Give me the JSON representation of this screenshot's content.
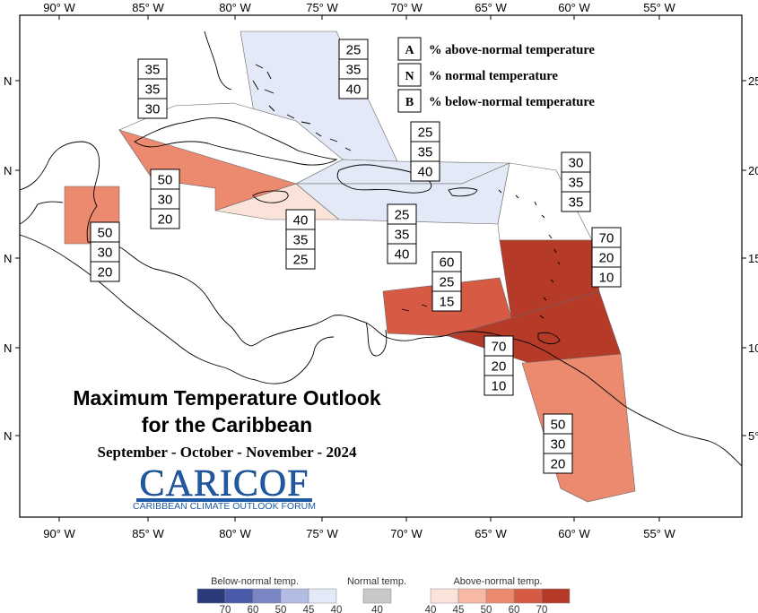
{
  "map": {
    "lon_ticks": [
      "90° W",
      "85° W",
      "80° W",
      "75° W",
      "70° W",
      "65° W",
      "60° W",
      "55° W"
    ],
    "lat_ticks_left": [
      "N",
      "N",
      "N",
      "N",
      "N"
    ],
    "lat_ticks_right": [
      "25",
      "20",
      "15",
      "10",
      "5°"
    ],
    "frame_lon_range": [
      -92,
      -51
    ],
    "frame_lat_range": [
      0.5,
      28
    ]
  },
  "legend": {
    "items": [
      {
        "letter": "A",
        "text": "% above-normal temperature"
      },
      {
        "letter": "N",
        "text": "% normal temperature"
      },
      {
        "letter": "B",
        "text": "% below-normal temperature"
      }
    ]
  },
  "title": {
    "line1": "Maximum Temperature Outlook",
    "line2": "for the Caribbean",
    "line3": "September - October - November - 2024"
  },
  "logo": {
    "name": "CARICOF",
    "caption": "CARIBBEAN CLIMATE OUTLOOK FORUM"
  },
  "colorbar": {
    "below": {
      "label": "Below-normal temp.",
      "ticks": [
        "70",
        "60",
        "50",
        "45",
        "40"
      ],
      "colors": [
        "#2b3a7a",
        "#4a5aa8",
        "#7b86c5",
        "#b3bde3",
        "#e4e9f7"
      ]
    },
    "normal": {
      "label": "Normal temp.",
      "ticks": [
        "40"
      ],
      "colors": [
        "#c8c8c8"
      ]
    },
    "above": {
      "label": "Above-normal temp.",
      "ticks": [
        "40",
        "45",
        "50",
        "60",
        "70"
      ],
      "colors": [
        "#fbe3da",
        "#f7b9a4",
        "#ec8a70",
        "#d65a44",
        "#b53a28"
      ]
    }
  },
  "regions": [
    {
      "id": "bahamas",
      "A": "25",
      "N": "35",
      "B": "40",
      "category": "below",
      "level": "40",
      "color": "#e4e9f7"
    },
    {
      "id": "cuba",
      "A": "35",
      "N": "35",
      "B": "30",
      "category": "none",
      "level": "",
      "color": "#ffffff"
    },
    {
      "id": "cuba-southwest",
      "A": "50",
      "N": "30",
      "B": "20",
      "category": "above",
      "level": "50",
      "color": "#ec8a70"
    },
    {
      "id": "belize",
      "A": "50",
      "N": "30",
      "B": "20",
      "category": "above",
      "level": "50",
      "color": "#ec8a70"
    },
    {
      "id": "jamaica",
      "A": "40",
      "N": "35",
      "B": "25",
      "category": "above",
      "level": "40",
      "color": "#fbe3da"
    },
    {
      "id": "hispaniola-north",
      "A": "25",
      "N": "35",
      "B": "40",
      "category": "below",
      "level": "40",
      "color": "#e4e9f7"
    },
    {
      "id": "hispaniola-south",
      "A": "25",
      "N": "35",
      "B": "40",
      "category": "below",
      "level": "40",
      "color": "#e4e9f7"
    },
    {
      "id": "leeward-islands",
      "A": "30",
      "N": "35",
      "B": "35",
      "category": "none",
      "level": "",
      "color": "#ffffff"
    },
    {
      "id": "windward-islands",
      "A": "70",
      "N": "20",
      "B": "10",
      "category": "above",
      "level": "70",
      "color": "#b53a28"
    },
    {
      "id": "abc-islands",
      "A": "60",
      "N": "25",
      "B": "15",
      "category": "above",
      "level": "60",
      "color": "#d65a44"
    },
    {
      "id": "trinidad-tobago",
      "A": "70",
      "N": "20",
      "B": "10",
      "category": "above",
      "level": "70",
      "color": "#b53a28"
    },
    {
      "id": "guianas",
      "A": "50",
      "N": "30",
      "B": "20",
      "category": "above",
      "level": "50",
      "color": "#ec8a70"
    }
  ]
}
